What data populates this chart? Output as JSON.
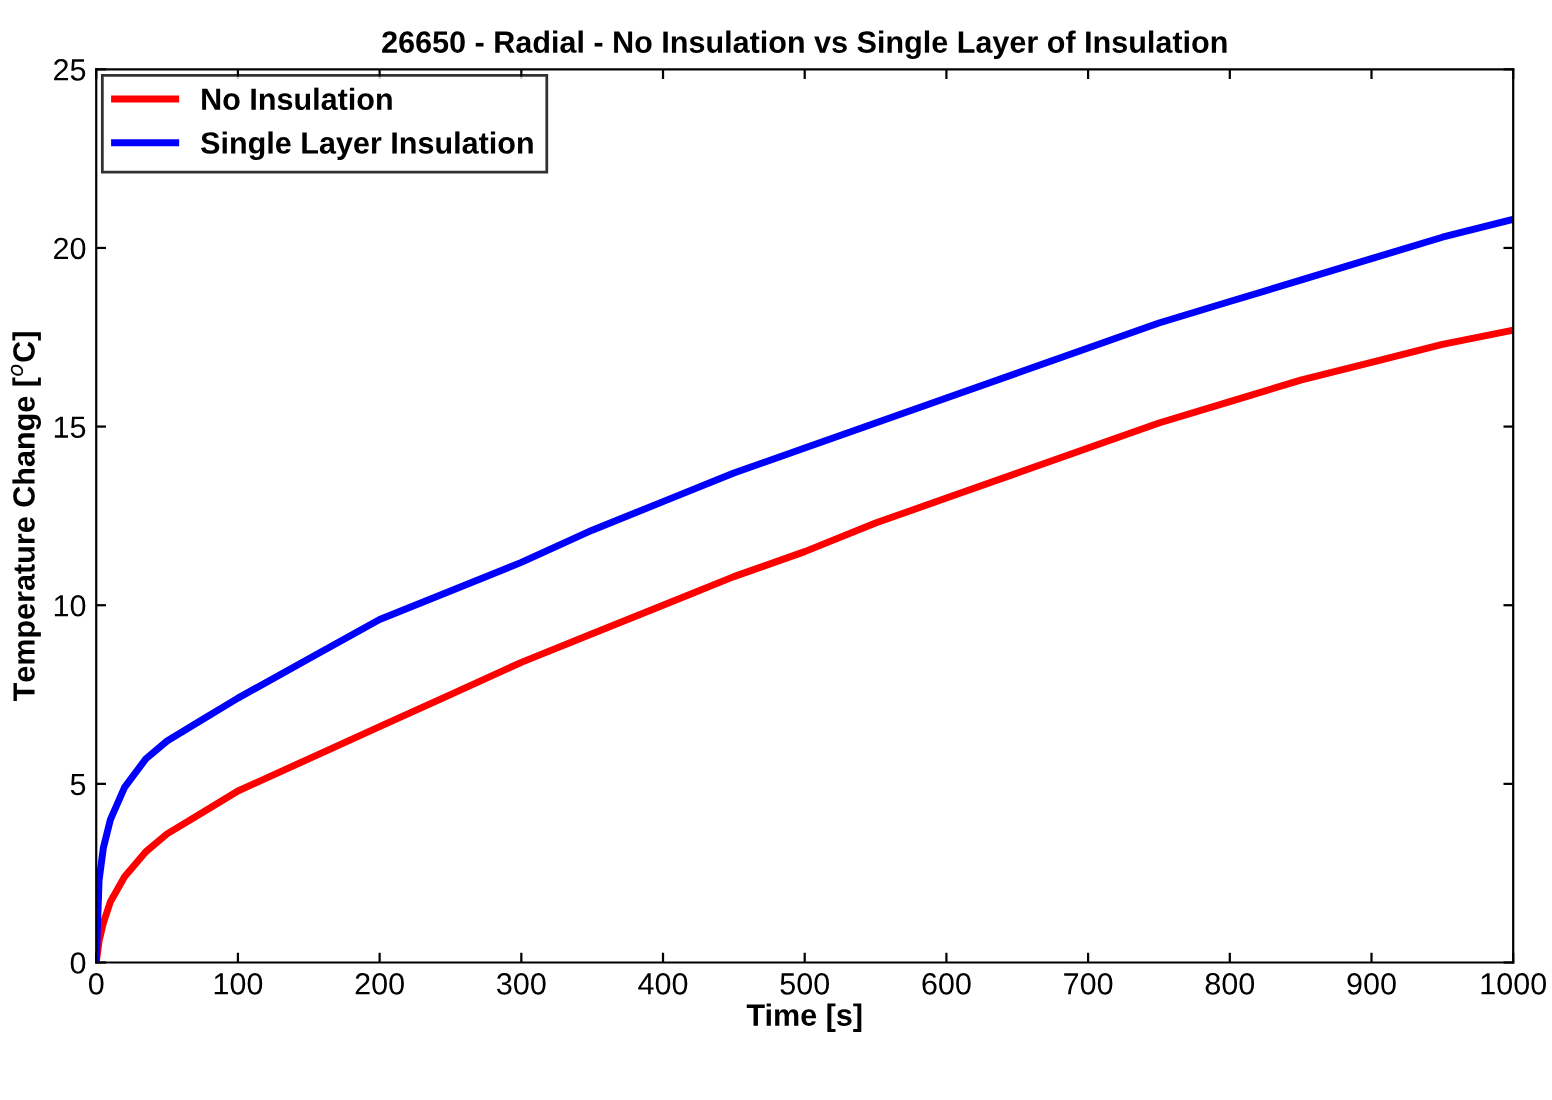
{
  "chart_data": {
    "type": "line",
    "title": "26650 - Radial - No Insulation vs Single Layer of Insulation",
    "xlabel": "Time [s]",
    "ylabel": "Temperature Change [$^{o}$C]",
    "x": [
      0,
      2,
      5,
      10,
      20,
      35,
      50,
      75,
      100,
      150,
      200,
      250,
      300,
      350,
      400,
      450,
      500,
      550,
      600,
      650,
      700,
      750,
      800,
      850,
      900,
      950,
      1000
    ],
    "series": [
      {
        "name": "No Insulation",
        "color": "#ff0000",
        "values": [
          0,
          0.6,
          1.1,
          1.7,
          2.4,
          3.1,
          3.6,
          4.2,
          4.8,
          5.7,
          6.6,
          7.5,
          8.4,
          9.2,
          10.0,
          10.8,
          11.5,
          12.3,
          13.0,
          13.7,
          14.4,
          15.1,
          15.7,
          16.3,
          16.8,
          17.3,
          17.7
        ]
      },
      {
        "name": "Single Layer Insulation",
        "color": "#0000ff",
        "values": [
          0,
          2.3,
          3.2,
          4.0,
          4.9,
          5.7,
          6.2,
          6.8,
          7.4,
          8.5,
          9.6,
          10.4,
          11.2,
          12.1,
          12.9,
          13.7,
          14.4,
          15.1,
          15.8,
          16.5,
          17.2,
          17.9,
          18.5,
          19.1,
          19.7,
          20.3,
          20.8
        ]
      }
    ],
    "xlim": [
      0,
      1000
    ],
    "xticks": [
      0,
      100,
      200,
      300,
      400,
      500,
      600,
      700,
      800,
      900,
      1000
    ],
    "ylim": [
      0,
      25
    ],
    "yticks": [
      0,
      5,
      10,
      15,
      20,
      25
    ],
    "grid": false,
    "legend": "top left",
    "marker": "none",
    "line_style": "solid"
  }
}
